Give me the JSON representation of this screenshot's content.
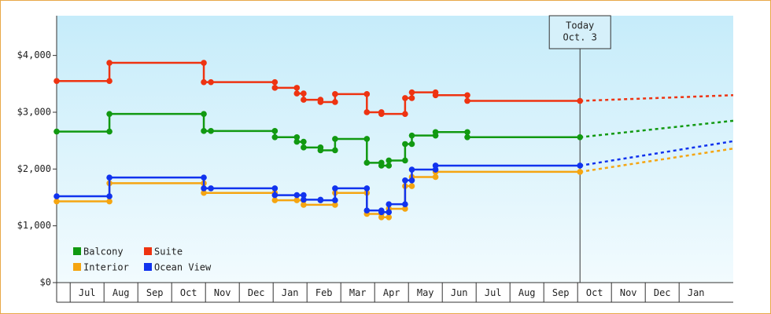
{
  "chart_data": {
    "type": "step-line",
    "categories": [
      "Jul",
      "Aug",
      "Sep",
      "Oct",
      "Nov",
      "Dec",
      "Jan",
      "Feb",
      "Mar",
      "Apr",
      "May",
      "Jun",
      "Jul",
      "Aug",
      "Sep",
      "Oct",
      "Nov",
      "Dec",
      "Jan"
    ],
    "xlim": [
      -0.4,
      19.6
    ],
    "ylim": [
      0,
      4700
    ],
    "yticks": [
      {
        "value": 0,
        "label": "$0"
      },
      {
        "value": 1000,
        "label": "$1,000"
      },
      {
        "value": 2000,
        "label": "$2,000"
      },
      {
        "value": 3000,
        "label": "$3,000"
      },
      {
        "value": 4000,
        "label": "$4,000"
      }
    ],
    "annotation": {
      "lines": [
        "Today",
        "Oct. 3"
      ],
      "x": 15.07
    },
    "series": [
      {
        "name": "Balcony",
        "color": "#119911",
        "x": [
          -0.4,
          1.16,
          3.95,
          4.16,
          6.05,
          6.7,
          6.9,
          7.4,
          7.83,
          8.77,
          9.2,
          9.42,
          9.9,
          10.1,
          10.8,
          11.74,
          15.07
        ],
        "values": [
          2660,
          2970,
          2670,
          2670,
          2560,
          2480,
          2380,
          2330,
          2530,
          2110,
          2060,
          2150,
          2440,
          2590,
          2650,
          2560,
          2560
        ],
        "forecast_end": 2850
      },
      {
        "name": "Suite",
        "color": "#ee3311",
        "x": [
          -0.4,
          1.16,
          3.95,
          4.16,
          6.05,
          6.7,
          6.9,
          7.4,
          7.83,
          8.77,
          9.2,
          9.9,
          10.1,
          10.8,
          11.74,
          15.07
        ],
        "values": [
          3550,
          3870,
          3530,
          3530,
          3430,
          3330,
          3220,
          3180,
          3320,
          3000,
          2970,
          3250,
          3350,
          3300,
          3200,
          3200
        ],
        "forecast_end": 3300
      },
      {
        "name": "Interior",
        "color": "#f5a511",
        "x": [
          -0.4,
          1.16,
          3.95,
          6.05,
          6.7,
          6.9,
          7.83,
          8.77,
          9.2,
          9.42,
          9.9,
          10.1,
          10.8,
          15.07
        ],
        "values": [
          1430,
          1750,
          1580,
          1450,
          1450,
          1370,
          1580,
          1210,
          1150,
          1300,
          1700,
          1860,
          1950,
          1950
        ],
        "forecast_end": 2360
      },
      {
        "name": "Ocean View",
        "color": "#1133ee",
        "x": [
          -0.4,
          1.16,
          3.95,
          4.16,
          6.05,
          6.7,
          6.9,
          7.4,
          7.83,
          8.77,
          9.2,
          9.42,
          9.9,
          10.1,
          10.8,
          15.07
        ],
        "values": [
          1520,
          1850,
          1660,
          1660,
          1540,
          1540,
          1460,
          1450,
          1660,
          1270,
          1240,
          1380,
          1800,
          1990,
          2060,
          2060
        ],
        "forecast_end": 2490
      }
    ]
  }
}
